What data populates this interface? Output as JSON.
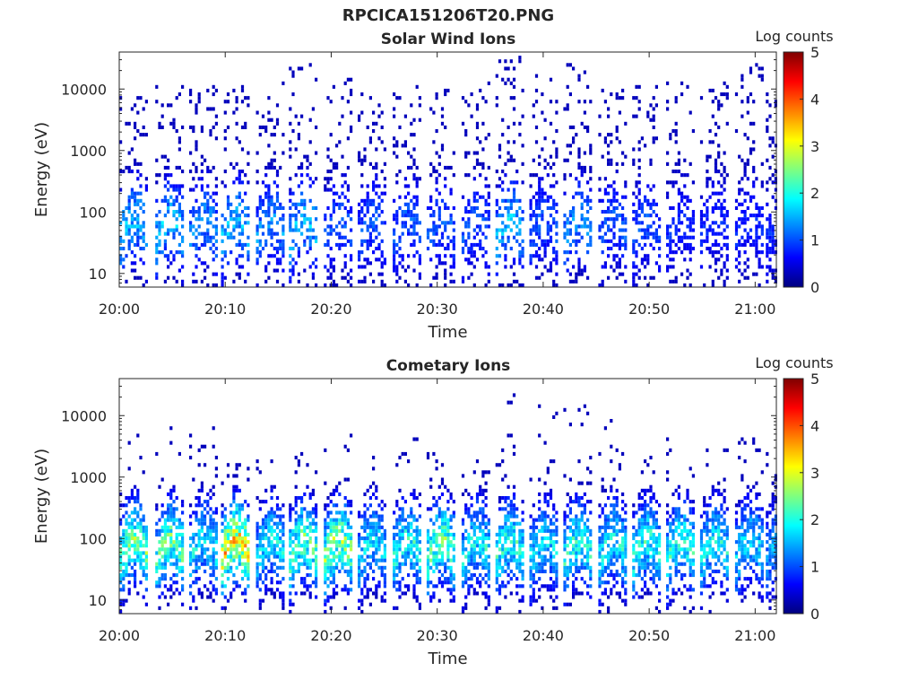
{
  "figure_title": "RPCICA151206T20.PNG",
  "colors": {
    "axis": "#262626",
    "colormap": [
      "#00007f",
      "#0000ff",
      "#007fff",
      "#00ffff",
      "#7fff7f",
      "#ffff00",
      "#ff7f00",
      "#ff0000",
      "#7f0000"
    ]
  },
  "chart_data": [
    {
      "type": "heatmap",
      "title": "Solar Wind Ions",
      "xlabel": "Time",
      "ylabel": "Energy (eV)",
      "x_ticks": [
        "20:00",
        "20:10",
        "20:20",
        "20:30",
        "20:40",
        "20:50",
        "21:00"
      ],
      "x_range": [
        "20:00",
        "21:02"
      ],
      "y_scale": "log",
      "y_ticks": [
        "10",
        "100",
        "1000",
        "10000"
      ],
      "y_range": [
        6,
        40000
      ],
      "colorbar": {
        "label": "Log counts",
        "ticks": [
          "0",
          "1",
          "2",
          "3",
          "4",
          "5"
        ],
        "range": [
          0,
          5
        ]
      },
      "grid": false,
      "sweep_start_minutes": [
        0.0,
        3.4,
        6.6,
        9.6,
        12.9,
        16.0,
        19.3,
        22.5,
        25.8,
        29.0,
        32.3,
        35.5,
        38.7,
        41.9,
        45.2,
        48.4,
        51.6,
        54.8,
        58.1,
        61.0
      ],
      "sweep_peak_log_counts": [
        2.0,
        2.0,
        1.7,
        2.0,
        1.7,
        2.0,
        1.3,
        1.3,
        1.3,
        1.3,
        1.3,
        2.0,
        1.3,
        1.7,
        1.3,
        1.3,
        1.0,
        1.0,
        1.0,
        1.0
      ],
      "max_energy_eV": [
        8000,
        12000,
        14000,
        14000,
        13000,
        25000,
        16000,
        11000,
        13000,
        12000,
        13000,
        36000,
        17000,
        25000,
        13000,
        11000,
        14000,
        14000,
        27000,
        12000
      ]
    },
    {
      "type": "heatmap",
      "title": "Cometary Ions",
      "xlabel": "Time",
      "ylabel": "Energy (eV)",
      "x_ticks": [
        "20:00",
        "20:10",
        "20:20",
        "20:30",
        "20:40",
        "20:50",
        "21:00"
      ],
      "x_range": [
        "20:00",
        "21:02"
      ],
      "y_scale": "log",
      "y_ticks": [
        "10",
        "100",
        "1000",
        "10000"
      ],
      "y_range": [
        6,
        40000
      ],
      "colorbar": {
        "label": "Log counts",
        "ticks": [
          "0",
          "1",
          "2",
          "3",
          "4",
          "5"
        ],
        "range": [
          0,
          5
        ]
      },
      "grid": false,
      "sweep_start_minutes": [
        0.0,
        3.4,
        6.6,
        9.6,
        12.9,
        16.0,
        19.3,
        22.5,
        25.8,
        29.0,
        32.3,
        35.5,
        38.7,
        41.9,
        45.2,
        48.4,
        51.6,
        54.8,
        58.1,
        61.0
      ],
      "sweep_peak_log_counts": [
        3.0,
        3.0,
        2.3,
        4.0,
        2.3,
        3.0,
        3.3,
        2.2,
        2.5,
        3.0,
        2.4,
        2.6,
        2.2,
        2.6,
        2.4,
        2.6,
        2.6,
        2.3,
        2.2,
        1.8
      ],
      "max_energy_eV": [
        7000,
        6500,
        7000,
        2000,
        2500,
        2500,
        8000,
        2500,
        4500,
        3000,
        2000,
        28000,
        17000,
        15000,
        9000,
        3000,
        10000,
        3000,
        5000,
        2500
      ]
    }
  ]
}
